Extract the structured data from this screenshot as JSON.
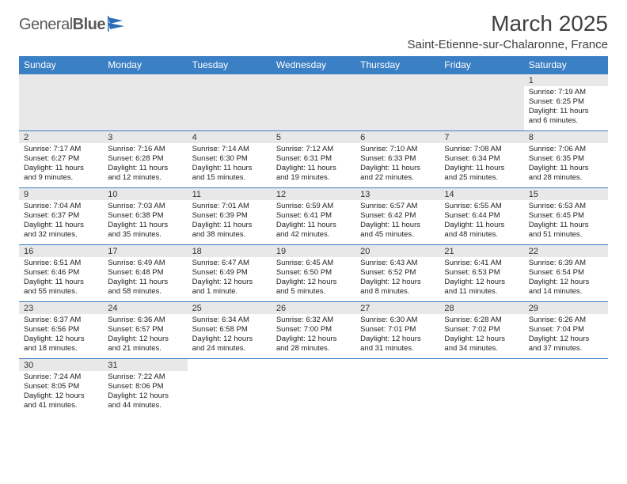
{
  "brand": {
    "name_a": "General",
    "name_b": "Blue"
  },
  "title": "March 2025",
  "location": "Saint-Etienne-sur-Chalaronne, France",
  "colors": {
    "header_bg": "#3b7fc4",
    "header_fg": "#ffffff",
    "daynum_bg": "#e8e8e8",
    "row_border": "#3b7fc4",
    "text": "#222222",
    "brand_text": "#5a5a5a"
  },
  "day_headers": [
    "Sunday",
    "Monday",
    "Tuesday",
    "Wednesday",
    "Thursday",
    "Friday",
    "Saturday"
  ],
  "weeks": [
    [
      null,
      null,
      null,
      null,
      null,
      null,
      {
        "n": "1",
        "sunrise": "7:19 AM",
        "sunset": "6:25 PM",
        "daylight": "11 hours and 6 minutes."
      }
    ],
    [
      {
        "n": "2",
        "sunrise": "7:17 AM",
        "sunset": "6:27 PM",
        "daylight": "11 hours and 9 minutes."
      },
      {
        "n": "3",
        "sunrise": "7:16 AM",
        "sunset": "6:28 PM",
        "daylight": "11 hours and 12 minutes."
      },
      {
        "n": "4",
        "sunrise": "7:14 AM",
        "sunset": "6:30 PM",
        "daylight": "11 hours and 15 minutes."
      },
      {
        "n": "5",
        "sunrise": "7:12 AM",
        "sunset": "6:31 PM",
        "daylight": "11 hours and 19 minutes."
      },
      {
        "n": "6",
        "sunrise": "7:10 AM",
        "sunset": "6:33 PM",
        "daylight": "11 hours and 22 minutes."
      },
      {
        "n": "7",
        "sunrise": "7:08 AM",
        "sunset": "6:34 PM",
        "daylight": "11 hours and 25 minutes."
      },
      {
        "n": "8",
        "sunrise": "7:06 AM",
        "sunset": "6:35 PM",
        "daylight": "11 hours and 28 minutes."
      }
    ],
    [
      {
        "n": "9",
        "sunrise": "7:04 AM",
        "sunset": "6:37 PM",
        "daylight": "11 hours and 32 minutes."
      },
      {
        "n": "10",
        "sunrise": "7:03 AM",
        "sunset": "6:38 PM",
        "daylight": "11 hours and 35 minutes."
      },
      {
        "n": "11",
        "sunrise": "7:01 AM",
        "sunset": "6:39 PM",
        "daylight": "11 hours and 38 minutes."
      },
      {
        "n": "12",
        "sunrise": "6:59 AM",
        "sunset": "6:41 PM",
        "daylight": "11 hours and 42 minutes."
      },
      {
        "n": "13",
        "sunrise": "6:57 AM",
        "sunset": "6:42 PM",
        "daylight": "11 hours and 45 minutes."
      },
      {
        "n": "14",
        "sunrise": "6:55 AM",
        "sunset": "6:44 PM",
        "daylight": "11 hours and 48 minutes."
      },
      {
        "n": "15",
        "sunrise": "6:53 AM",
        "sunset": "6:45 PM",
        "daylight": "11 hours and 51 minutes."
      }
    ],
    [
      {
        "n": "16",
        "sunrise": "6:51 AM",
        "sunset": "6:46 PM",
        "daylight": "11 hours and 55 minutes."
      },
      {
        "n": "17",
        "sunrise": "6:49 AM",
        "sunset": "6:48 PM",
        "daylight": "11 hours and 58 minutes."
      },
      {
        "n": "18",
        "sunrise": "6:47 AM",
        "sunset": "6:49 PM",
        "daylight": "12 hours and 1 minute."
      },
      {
        "n": "19",
        "sunrise": "6:45 AM",
        "sunset": "6:50 PM",
        "daylight": "12 hours and 5 minutes."
      },
      {
        "n": "20",
        "sunrise": "6:43 AM",
        "sunset": "6:52 PM",
        "daylight": "12 hours and 8 minutes."
      },
      {
        "n": "21",
        "sunrise": "6:41 AM",
        "sunset": "6:53 PM",
        "daylight": "12 hours and 11 minutes."
      },
      {
        "n": "22",
        "sunrise": "6:39 AM",
        "sunset": "6:54 PM",
        "daylight": "12 hours and 14 minutes."
      }
    ],
    [
      {
        "n": "23",
        "sunrise": "6:37 AM",
        "sunset": "6:56 PM",
        "daylight": "12 hours and 18 minutes."
      },
      {
        "n": "24",
        "sunrise": "6:36 AM",
        "sunset": "6:57 PM",
        "daylight": "12 hours and 21 minutes."
      },
      {
        "n": "25",
        "sunrise": "6:34 AM",
        "sunset": "6:58 PM",
        "daylight": "12 hours and 24 minutes."
      },
      {
        "n": "26",
        "sunrise": "6:32 AM",
        "sunset": "7:00 PM",
        "daylight": "12 hours and 28 minutes."
      },
      {
        "n": "27",
        "sunrise": "6:30 AM",
        "sunset": "7:01 PM",
        "daylight": "12 hours and 31 minutes."
      },
      {
        "n": "28",
        "sunrise": "6:28 AM",
        "sunset": "7:02 PM",
        "daylight": "12 hours and 34 minutes."
      },
      {
        "n": "29",
        "sunrise": "6:26 AM",
        "sunset": "7:04 PM",
        "daylight": "12 hours and 37 minutes."
      }
    ],
    [
      {
        "n": "30",
        "sunrise": "7:24 AM",
        "sunset": "8:05 PM",
        "daylight": "12 hours and 41 minutes."
      },
      {
        "n": "31",
        "sunrise": "7:22 AM",
        "sunset": "8:06 PM",
        "daylight": "12 hours and 44 minutes."
      },
      null,
      null,
      null,
      null,
      null
    ]
  ],
  "labels": {
    "sunrise": "Sunrise:",
    "sunset": "Sunset:",
    "daylight": "Daylight:"
  }
}
